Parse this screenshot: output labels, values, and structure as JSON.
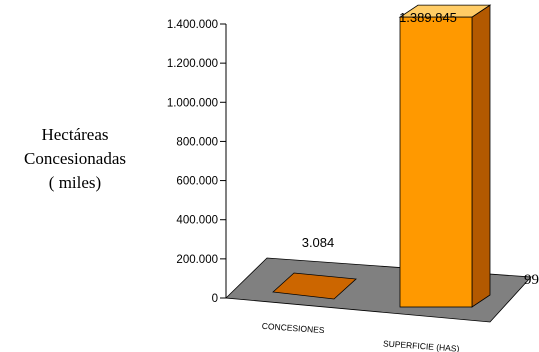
{
  "chart_data": {
    "type": "bar",
    "ylabel_lines": [
      "Hectáreas",
      "Concesionadas",
      "( miles)"
    ],
    "yticks": [
      "1.400.000",
      "1.200.000",
      "1.000.000",
      "800.000",
      "600.000",
      "400.000",
      "200.000",
      "0"
    ],
    "ylim": [
      0,
      1400000
    ],
    "categories": [
      "CONCESIONES",
      "SUPERFICIE (HAS)"
    ],
    "values": [
      3084,
      1389845
    ],
    "data_labels": [
      "3.084",
      "1.389.845"
    ],
    "clipped_label": "99",
    "grid": false,
    "style": "3d",
    "colors": {
      "bar_front": "#ff9900",
      "bar_top": "#ffcc66",
      "bar_side": "#b35900",
      "floor": "#808080",
      "flat_bar": "#cc6600"
    }
  }
}
